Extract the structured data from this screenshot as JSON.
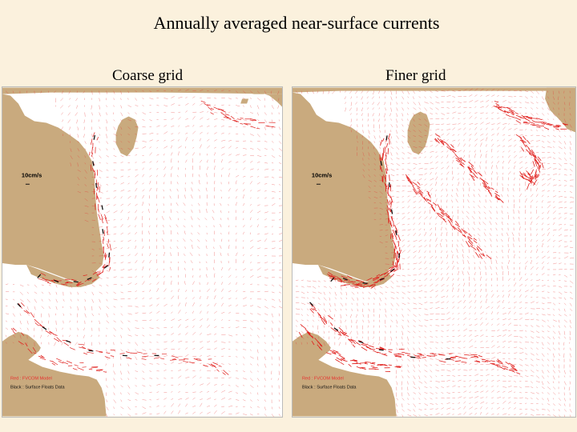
{
  "title": "Annually averaged near-surface currents",
  "panels": [
    {
      "label": "Coarse grid",
      "scale_label": "10cm/s",
      "legend_red": "Red  : FVCOM Model",
      "legend_black": "Black : Surface Floats Data",
      "red_density": "coarse"
    },
    {
      "label": "Finer grid",
      "scale_label": "10cm/s",
      "legend_red": "Red  : FVCOM Model",
      "legend_black": "Black : Surface Floats Data",
      "red_density": "fine"
    }
  ],
  "colors": {
    "background": "#fbf1dd",
    "land": "#c9aa7e",
    "water": "#ffffff",
    "model_vectors": "#e8302e",
    "float_vectors": "#111111"
  }
}
